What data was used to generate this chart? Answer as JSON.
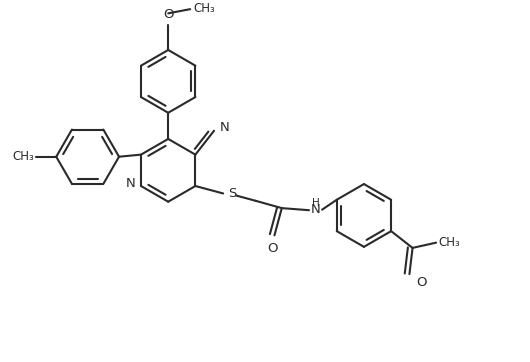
{
  "bg": "#ffffff",
  "lc": "#2a2a2a",
  "lw": 1.5,
  "fs": 9.5,
  "figsize": [
    5.3,
    3.62
  ],
  "dpi": 100,
  "xlim": [
    0,
    10
  ],
  "ylim": [
    0,
    6.83
  ],
  "ring_r": 0.6
}
